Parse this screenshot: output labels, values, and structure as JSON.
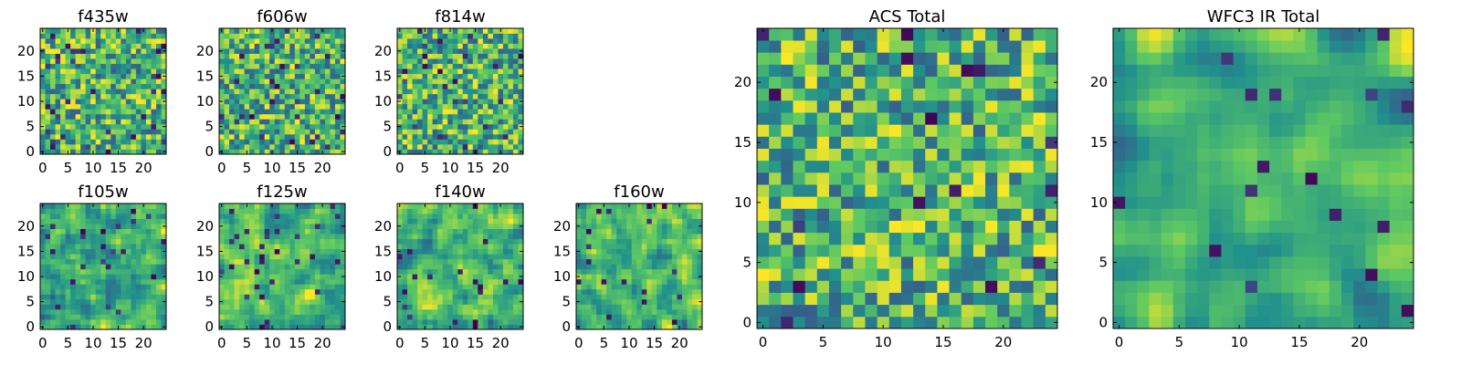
{
  "figure": {
    "background": "#ffffff",
    "colormap": "viridis",
    "colormap_stops": [
      "#440154",
      "#3b528b",
      "#21918c",
      "#5ec962",
      "#fde725"
    ]
  },
  "chart_data": [
    {
      "type": "heatmap",
      "title": "f435w",
      "shape": [
        25,
        25
      ],
      "xlim": [
        0,
        24
      ],
      "ylim": [
        0,
        24
      ],
      "xticks": [
        "0",
        "5",
        "10",
        "15",
        "20"
      ],
      "yticks": [
        "0",
        "5",
        "10",
        "15",
        "20"
      ],
      "origin": "lower",
      "seed": 11,
      "smooth": 0,
      "dark_fraction": 0.05
    },
    {
      "type": "heatmap",
      "title": "f606w",
      "shape": [
        25,
        25
      ],
      "xlim": [
        0,
        24
      ],
      "ylim": [
        0,
        24
      ],
      "xticks": [
        "0",
        "5",
        "10",
        "15",
        "20"
      ],
      "yticks": [
        "0",
        "5",
        "10",
        "15",
        "20"
      ],
      "origin": "lower",
      "seed": 23,
      "smooth": 0,
      "dark_fraction": 0.05
    },
    {
      "type": "heatmap",
      "title": "f814w",
      "shape": [
        25,
        25
      ],
      "xlim": [
        0,
        24
      ],
      "ylim": [
        0,
        24
      ],
      "xticks": [
        "0",
        "5",
        "10",
        "15",
        "20"
      ],
      "yticks": [
        "0",
        "5",
        "10",
        "15",
        "20"
      ],
      "origin": "lower",
      "seed": 37,
      "smooth": 0,
      "dark_fraction": 0.05
    },
    {
      "type": "heatmap",
      "title": "f105w",
      "shape": [
        25,
        25
      ],
      "xlim": [
        0,
        24
      ],
      "ylim": [
        0,
        24
      ],
      "xticks": [
        "0",
        "5",
        "10",
        "15",
        "20"
      ],
      "yticks": [
        "0",
        "5",
        "10",
        "15",
        "20"
      ],
      "origin": "lower",
      "seed": 41,
      "smooth": 1,
      "dark_fraction": 0.04
    },
    {
      "type": "heatmap",
      "title": "f125w",
      "shape": [
        25,
        25
      ],
      "xlim": [
        0,
        24
      ],
      "ylim": [
        0,
        24
      ],
      "xticks": [
        "0",
        "5",
        "10",
        "15",
        "20"
      ],
      "yticks": [
        "0",
        "5",
        "10",
        "15",
        "20"
      ],
      "origin": "lower",
      "seed": 53,
      "smooth": 1,
      "dark_fraction": 0.04
    },
    {
      "type": "heatmap",
      "title": "f140w",
      "shape": [
        25,
        25
      ],
      "xlim": [
        0,
        24
      ],
      "ylim": [
        0,
        24
      ],
      "xticks": [
        "0",
        "5",
        "10",
        "15",
        "20"
      ],
      "yticks": [
        "0",
        "5",
        "10",
        "15",
        "20"
      ],
      "origin": "lower",
      "seed": 67,
      "smooth": 1,
      "dark_fraction": 0.04
    },
    {
      "type": "heatmap",
      "title": "f160w",
      "shape": [
        25,
        25
      ],
      "xlim": [
        0,
        24
      ],
      "ylim": [
        0,
        24
      ],
      "xticks": [
        "0",
        "5",
        "10",
        "15",
        "20"
      ],
      "yticks": [
        "0",
        "5",
        "10",
        "15",
        "20"
      ],
      "origin": "lower",
      "seed": 79,
      "smooth": 1,
      "dark_fraction": 0.04
    },
    {
      "type": "heatmap",
      "title": "ACS Total",
      "shape": [
        25,
        25
      ],
      "xlim": [
        0,
        24
      ],
      "ylim": [
        0,
        24
      ],
      "xticks": [
        "0",
        "5",
        "10",
        "15",
        "20"
      ],
      "yticks": [
        "0",
        "5",
        "10",
        "15",
        "20"
      ],
      "origin": "lower",
      "seed": 97,
      "smooth": 0,
      "dark_fraction": 0.03
    },
    {
      "type": "heatmap",
      "title": "WFC3 IR Total",
      "shape": [
        25,
        25
      ],
      "xlim": [
        0,
        24
      ],
      "ylim": [
        0,
        24
      ],
      "xticks": [
        "0",
        "5",
        "10",
        "15",
        "20"
      ],
      "yticks": [
        "0",
        "5",
        "10",
        "15",
        "20"
      ],
      "origin": "lower",
      "seed": 113,
      "smooth": 2,
      "dark_fraction": 0.03
    }
  ]
}
